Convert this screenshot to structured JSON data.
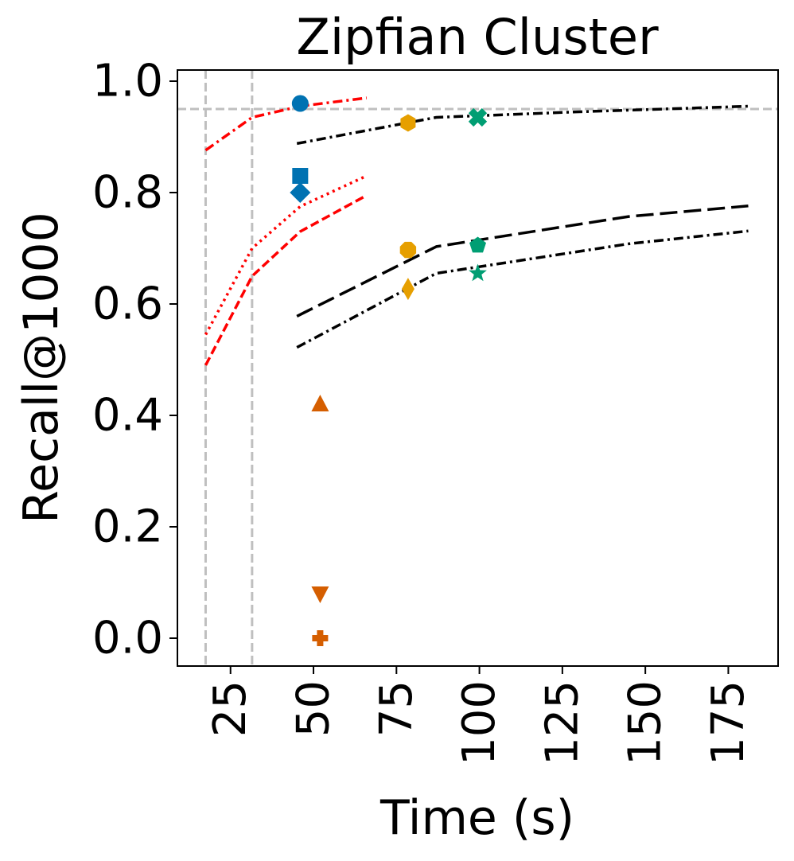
{
  "chart_data": {
    "type": "line",
    "title": "Zipfian Cluster",
    "xlabel": "Time (s)",
    "ylabel": "Recall@1000",
    "xlim": [
      9,
      190
    ],
    "ylim": [
      -0.05,
      1.02
    ],
    "xticks": [
      25,
      50,
      75,
      100,
      125,
      150,
      175
    ],
    "xtick_labels": [
      "25",
      "50",
      "75",
      "100",
      "125",
      "150",
      "175"
    ],
    "yticks": [
      0.0,
      0.2,
      0.4,
      0.6,
      0.8,
      1.0
    ],
    "ytick_labels": [
      "0.0",
      "0.2",
      "0.4",
      "0.6",
      "0.8",
      "1.0"
    ],
    "grid": false,
    "reference_lines": {
      "horizontal": [
        0.95
      ],
      "vertical": [
        17.5,
        31.5
      ],
      "color": "#bfbfbf",
      "style": "dashed"
    },
    "series": [
      {
        "name": "red-dashdot",
        "color": "#ff0000",
        "style": "dashdot",
        "x": [
          17.5,
          31.5,
          46,
          66
        ],
        "y": [
          0.876,
          0.935,
          0.955,
          0.97
        ]
      },
      {
        "name": "red-dotted",
        "color": "#ff0000",
        "style": "dotted",
        "x": [
          17.5,
          31.5,
          46,
          66
        ],
        "y": [
          0.545,
          0.7,
          0.775,
          0.83
        ]
      },
      {
        "name": "red-dashed",
        "color": "#ff0000",
        "style": "dashed",
        "x": [
          17.5,
          31.5,
          46,
          66
        ],
        "y": [
          0.49,
          0.65,
          0.73,
          0.795
        ]
      },
      {
        "name": "black-dashdot-top",
        "color": "#000000",
        "style": "dashdot",
        "x": [
          45,
          87,
          130,
          181
        ],
        "y": [
          0.888,
          0.935,
          0.945,
          0.955
        ]
      },
      {
        "name": "black-longdash",
        "color": "#000000",
        "style": "longdash",
        "x": [
          45,
          87,
          145,
          181
        ],
        "y": [
          0.578,
          0.703,
          0.757,
          0.776
        ]
      },
      {
        "name": "black-dashdot-bottom",
        "color": "#000000",
        "style": "dashdot",
        "x": [
          45,
          87,
          145,
          181
        ],
        "y": [
          0.522,
          0.655,
          0.708,
          0.731
        ]
      }
    ],
    "points": [
      {
        "marker": "circle",
        "color": "#0072b2",
        "x": 46,
        "y": 0.96
      },
      {
        "marker": "square",
        "color": "#0072b2",
        "x": 46,
        "y": 0.83
      },
      {
        "marker": "diamond",
        "color": "#0072b2",
        "x": 46,
        "y": 0.8
      },
      {
        "marker": "triangle-up",
        "color": "#d55e00",
        "x": 52,
        "y": 0.42
      },
      {
        "marker": "triangle-down",
        "color": "#d55e00",
        "x": 52,
        "y": 0.08
      },
      {
        "marker": "plus",
        "color": "#d55e00",
        "x": 52,
        "y": 0.0
      },
      {
        "marker": "hexagon",
        "color": "#e69f00",
        "x": 78.5,
        "y": 0.925
      },
      {
        "marker": "octagon",
        "color": "#e69f00",
        "x": 78.5,
        "y": 0.697
      },
      {
        "marker": "thin-diamond",
        "color": "#e69f00",
        "x": 78.5,
        "y": 0.627
      },
      {
        "marker": "x-filled",
        "color": "#009e73",
        "x": 99.5,
        "y": 0.935
      },
      {
        "marker": "pentagon",
        "color": "#009e73",
        "x": 99.5,
        "y": 0.705
      },
      {
        "marker": "star",
        "color": "#009e73",
        "x": 99.5,
        "y": 0.655
      }
    ]
  }
}
